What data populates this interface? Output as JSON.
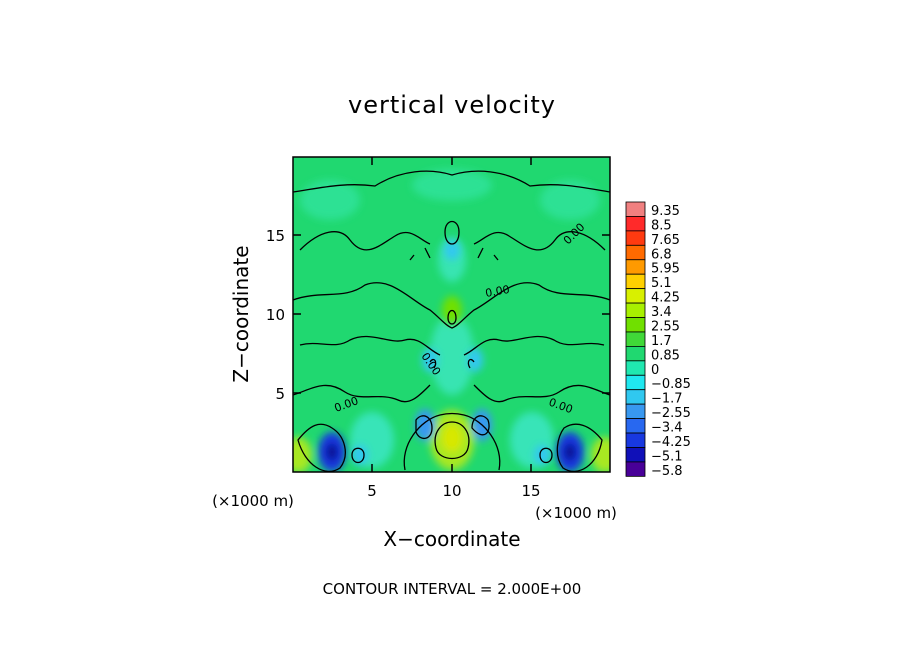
{
  "chart_data": {
    "type": "heatmap",
    "title": "vertical velocity",
    "xlabel": "X−coordinate",
    "ylabel": "Z−coordinate",
    "x_unit": "(×1000 m)",
    "z_unit": "(×1000 m)",
    "xlim": [
      0,
      20
    ],
    "ylim": [
      0,
      20
    ],
    "x_ticks": [
      "5",
      "10",
      "15"
    ],
    "y_ticks": [
      "5",
      "10",
      "15"
    ],
    "contour_labels": [
      "0.00",
      "0.00",
      "0.00",
      "0.00",
      "0.00"
    ],
    "footer": "CONTOUR INTERVAL = 2.000E+00",
    "colorbar": {
      "levels": [
        "9.35",
        "8.5",
        "7.65",
        "6.8",
        "5.95",
        "5.1",
        "4.25",
        "3.4",
        "2.55",
        "1.7",
        "0.85",
        "0",
        "−0.85",
        "−1.7",
        "−2.55",
        "−3.4",
        "−4.25",
        "−5.1",
        "−5.8"
      ],
      "colors": [
        "#f08080",
        "#ff2a2a",
        "#ff3a10",
        "#ff6a00",
        "#ff9a00",
        "#ffd000",
        "#d8f000",
        "#a8f000",
        "#70e000",
        "#40d838",
        "#20d870",
        "#20e8b0",
        "#20e8f0",
        "#30c8f0",
        "#3898f0",
        "#2868f0",
        "#1838e0",
        "#1010b8",
        "#480098"
      ]
    }
  }
}
